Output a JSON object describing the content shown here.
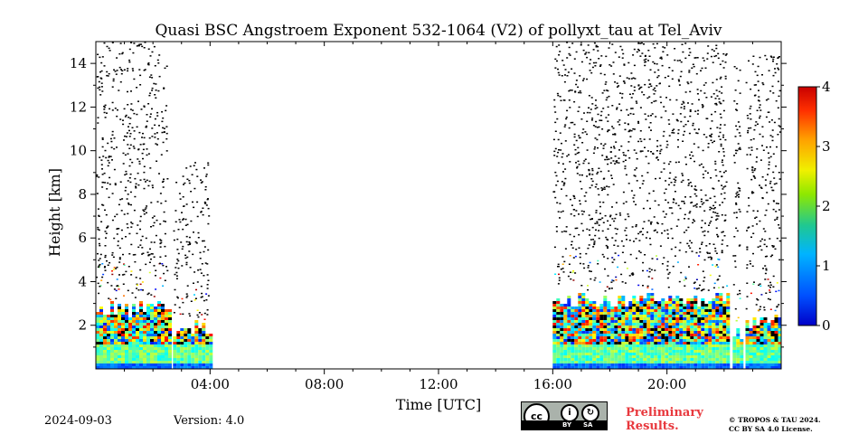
{
  "chart_data": {
    "type": "heatmap",
    "title": "Quasi BSC Angstroem Exponent 532-1064 (V2) of pollyxt_tau at Tel_Aviv",
    "xlabel": "Time [UTC]",
    "ylabel": "Height [km]",
    "xlim_hours": [
      0,
      24
    ],
    "ylim_km": [
      0,
      15
    ],
    "x_ticks": [
      4,
      8,
      12,
      16,
      20
    ],
    "x_tick_labels": [
      "04:00",
      "08:00",
      "12:00",
      "16:00",
      "20:00"
    ],
    "y_ticks": [
      2,
      4,
      6,
      8,
      10,
      12,
      14
    ],
    "y_tick_labels": [
      "2",
      "4",
      "6",
      "8",
      "10",
      "12",
      "14"
    ],
    "colorbar": {
      "range": [
        0,
        4
      ],
      "ticks": [
        0,
        1,
        2,
        3,
        4
      ],
      "tick_labels": [
        "0",
        "1",
        "2",
        "3",
        "4"
      ],
      "colormap": "jet"
    },
    "data_segments": [
      {
        "start_h": 0.0,
        "end_h": 2.55,
        "dense_top_km": 3.2,
        "noise_top_km": 15.0
      },
      {
        "start_h": 2.7,
        "end_h": 4.0,
        "dense_top_km": 2.3,
        "noise_top_km": 9.5
      },
      {
        "start_h": 16.0,
        "end_h": 22.15,
        "dense_top_km": 3.6,
        "noise_top_km": 15.0
      },
      {
        "start_h": 22.3,
        "end_h": 22.6,
        "dense_top_km": 2.0,
        "noise_top_km": 14.0
      },
      {
        "start_h": 22.75,
        "end_h": 24.0,
        "dense_top_km": 2.6,
        "noise_top_km": 14.5
      }
    ],
    "no_data_gaps": [
      {
        "start_h": 2.55,
        "end_h": 2.7
      },
      {
        "start_h": 4.0,
        "end_h": 16.0
      },
      {
        "start_h": 22.15,
        "end_h": 22.3
      },
      {
        "start_h": 22.6,
        "end_h": 22.75
      }
    ]
  },
  "footer": {
    "date": "2024-09-03",
    "version": "Version: 4.0",
    "cc_by_label": "BY",
    "cc_sa_label": "SA",
    "preliminary_line1": "Preliminary",
    "preliminary_line2": "Results.",
    "copyright_line1": "© TROPOS & TAU 2024.",
    "copyright_line2": "CC BY SA 4.0 License."
  }
}
